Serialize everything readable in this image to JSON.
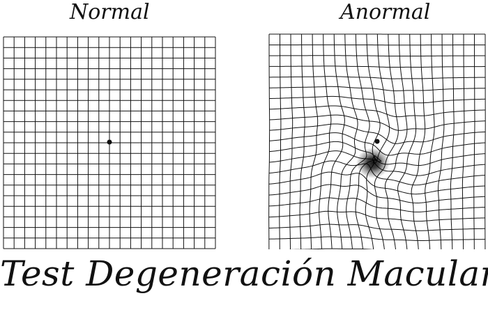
{
  "labels": {
    "normal": "Normal",
    "abnormal": "Anormal"
  },
  "footer": {
    "title": "Test Degeneración Macular"
  },
  "grids": {
    "normal": {
      "columns": 20,
      "rows": 20,
      "fixation_dot": true,
      "distortion": false
    },
    "abnormal": {
      "columns": 20,
      "rows": 20,
      "fixation_dot": true,
      "distortion": true,
      "dark_spot": true
    }
  },
  "colors": {
    "line": "#111111",
    "background": "#ffffff",
    "spot": "#000000"
  }
}
